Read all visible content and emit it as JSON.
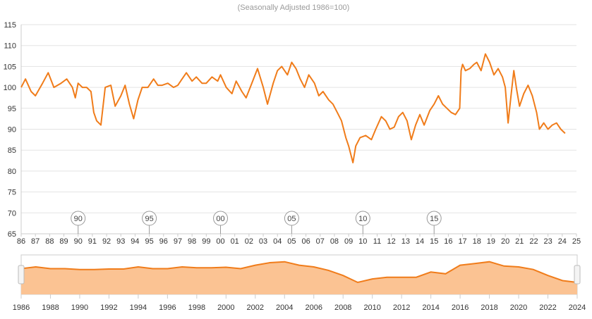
{
  "chart_data": {
    "type": "line",
    "subtitle": "(Seasonally Adjusted 1986=100)",
    "title": "",
    "xlabel": "",
    "ylabel": "",
    "ylim": [
      65,
      115
    ],
    "y_ticks": [
      "65",
      "70",
      "75",
      "80",
      "85",
      "90",
      "95",
      "100",
      "105",
      "110",
      "115"
    ],
    "x_ticks": [
      "86",
      "87",
      "88",
      "89",
      "90",
      "91",
      "92",
      "93",
      "94",
      "95",
      "96",
      "97",
      "98",
      "99",
      "00",
      "01",
      "02",
      "03",
      "04",
      "05",
      "06",
      "07",
      "08",
      "09",
      "10",
      "11",
      "12",
      "13",
      "14",
      "15",
      "16",
      "17",
      "18",
      "19",
      "20",
      "21",
      "22",
      "23",
      "24",
      "25"
    ],
    "grid": true,
    "line_color": "#f07c1a",
    "flag_markers": [
      {
        "label": "90",
        "x": 1990
      },
      {
        "label": "95",
        "x": 1995
      },
      {
        "label": "00",
        "x": 2000
      },
      {
        "label": "05",
        "x": 2005
      },
      {
        "label": "10",
        "x": 2010
      },
      {
        "label": "15",
        "x": 2015
      }
    ],
    "series": [
      {
        "points": [
          [
            1986.0,
            100
          ],
          [
            1986.3,
            102
          ],
          [
            1986.7,
            99
          ],
          [
            1987.0,
            98
          ],
          [
            1987.5,
            101
          ],
          [
            1987.9,
            103.5
          ],
          [
            1988.3,
            100
          ],
          [
            1988.8,
            101
          ],
          [
            1989.2,
            102
          ],
          [
            1989.6,
            100
          ],
          [
            1989.8,
            97.5
          ],
          [
            1990.0,
            101
          ],
          [
            1990.3,
            100
          ],
          [
            1990.6,
            100
          ],
          [
            1990.9,
            99
          ],
          [
            1991.1,
            94
          ],
          [
            1991.3,
            92
          ],
          [
            1991.6,
            91
          ],
          [
            1991.9,
            100
          ],
          [
            1992.3,
            100.5
          ],
          [
            1992.6,
            95.5
          ],
          [
            1993.0,
            98
          ],
          [
            1993.3,
            100.5
          ],
          [
            1993.6,
            96
          ],
          [
            1993.9,
            92.5
          ],
          [
            1994.2,
            97
          ],
          [
            1994.5,
            100
          ],
          [
            1994.9,
            100
          ],
          [
            1995.3,
            102
          ],
          [
            1995.6,
            100.5
          ],
          [
            1995.9,
            100.5
          ],
          [
            1996.3,
            101
          ],
          [
            1996.7,
            100
          ],
          [
            1997.0,
            100.5
          ],
          [
            1997.3,
            102
          ],
          [
            1997.6,
            103.5
          ],
          [
            1998.0,
            101.5
          ],
          [
            1998.3,
            102.5
          ],
          [
            1998.7,
            101
          ],
          [
            1999.0,
            101
          ],
          [
            1999.4,
            102.5
          ],
          [
            1999.8,
            101.5
          ],
          [
            2000.0,
            103
          ],
          [
            2000.4,
            100
          ],
          [
            2000.8,
            98.5
          ],
          [
            2001.1,
            101.5
          ],
          [
            2001.5,
            99
          ],
          [
            2001.8,
            97.5
          ],
          [
            2002.2,
            101
          ],
          [
            2002.6,
            104.5
          ],
          [
            2003.0,
            100
          ],
          [
            2003.3,
            96
          ],
          [
            2003.7,
            101
          ],
          [
            2004.0,
            104
          ],
          [
            2004.3,
            105
          ],
          [
            2004.7,
            103
          ],
          [
            2005.0,
            106
          ],
          [
            2005.3,
            104.5
          ],
          [
            2005.6,
            102
          ],
          [
            2005.9,
            100
          ],
          [
            2006.2,
            103
          ],
          [
            2006.6,
            101
          ],
          [
            2006.9,
            98
          ],
          [
            2007.2,
            99
          ],
          [
            2007.6,
            97
          ],
          [
            2007.9,
            96
          ],
          [
            2008.2,
            94
          ],
          [
            2008.5,
            92
          ],
          [
            2008.8,
            88
          ],
          [
            2009.0,
            86
          ],
          [
            2009.3,
            82
          ],
          [
            2009.5,
            86
          ],
          [
            2009.8,
            88
          ],
          [
            2010.2,
            88.5
          ],
          [
            2010.6,
            87.5
          ],
          [
            2010.9,
            90
          ],
          [
            2011.3,
            93
          ],
          [
            2011.6,
            92
          ],
          [
            2011.9,
            90
          ],
          [
            2012.2,
            90.5
          ],
          [
            2012.5,
            93
          ],
          [
            2012.8,
            94
          ],
          [
            2013.1,
            92
          ],
          [
            2013.4,
            87.5
          ],
          [
            2013.7,
            91
          ],
          [
            2014.0,
            93.5
          ],
          [
            2014.3,
            91
          ],
          [
            2014.7,
            94.5
          ],
          [
            2015.0,
            96
          ],
          [
            2015.3,
            98
          ],
          [
            2015.6,
            96
          ],
          [
            2015.9,
            95
          ],
          [
            2016.2,
            94
          ],
          [
            2016.5,
            93.5
          ],
          [
            2016.8,
            95
          ],
          [
            2016.9,
            104
          ],
          [
            2017.0,
            105.5
          ],
          [
            2017.2,
            104
          ],
          [
            2017.5,
            104.5
          ],
          [
            2017.8,
            105.5
          ],
          [
            2018.0,
            106
          ],
          [
            2018.3,
            104
          ],
          [
            2018.6,
            108
          ],
          [
            2018.9,
            106
          ],
          [
            2019.2,
            103
          ],
          [
            2019.5,
            104.5
          ],
          [
            2019.8,
            102.5
          ],
          [
            2020.0,
            100
          ],
          [
            2020.2,
            91.5
          ],
          [
            2020.4,
            98
          ],
          [
            2020.6,
            104
          ],
          [
            2020.8,
            99.5
          ],
          [
            2021.0,
            95.5
          ],
          [
            2021.3,
            98.5
          ],
          [
            2021.6,
            100.5
          ],
          [
            2021.9,
            98
          ],
          [
            2022.2,
            94
          ],
          [
            2022.4,
            90
          ],
          [
            2022.7,
            91.5
          ],
          [
            2023.0,
            90
          ],
          [
            2023.3,
            91
          ],
          [
            2023.6,
            91.5
          ],
          [
            2023.9,
            90
          ],
          [
            2024.2,
            89
          ]
        ]
      }
    ],
    "navigator": {
      "tick_labels": [
        "1986",
        "1988",
        "1990",
        "1992",
        "1994",
        "1996",
        "1998",
        "2000",
        "2002",
        "2004",
        "2006",
        "2008",
        "2010",
        "2012",
        "2014",
        "2016",
        "2018",
        "2020",
        "2022",
        "2024"
      ],
      "fill_color": "#fbc393",
      "line_color": "#f07c1a",
      "points": [
        [
          1986,
          100
        ],
        [
          1987,
          101
        ],
        [
          1988,
          100
        ],
        [
          1989,
          100
        ],
        [
          1990,
          99.5
        ],
        [
          1991,
          99.5
        ],
        [
          1992,
          99.8
        ],
        [
          1993,
          99.8
        ],
        [
          1994,
          101
        ],
        [
          1995,
          100
        ],
        [
          1996,
          100
        ],
        [
          1997,
          101
        ],
        [
          1998,
          100.5
        ],
        [
          1999,
          100.5
        ],
        [
          2000,
          100.8
        ],
        [
          2001,
          100
        ],
        [
          2002,
          102
        ],
        [
          2003,
          103.5
        ],
        [
          2004,
          104
        ],
        [
          2005,
          102
        ],
        [
          2006,
          101
        ],
        [
          2007,
          99
        ],
        [
          2008,
          96
        ],
        [
          2009,
          92
        ],
        [
          2010,
          94
        ],
        [
          2011,
          95
        ],
        [
          2012,
          95
        ],
        [
          2013,
          95
        ],
        [
          2014,
          98
        ],
        [
          2015,
          97
        ],
        [
          2016,
          102
        ],
        [
          2017,
          103
        ],
        [
          2018,
          104
        ],
        [
          2019,
          101.5
        ],
        [
          2020,
          101
        ],
        [
          2021,
          99.5
        ],
        [
          2022,
          96
        ],
        [
          2023,
          93
        ],
        [
          2024,
          92
        ]
      ]
    }
  }
}
